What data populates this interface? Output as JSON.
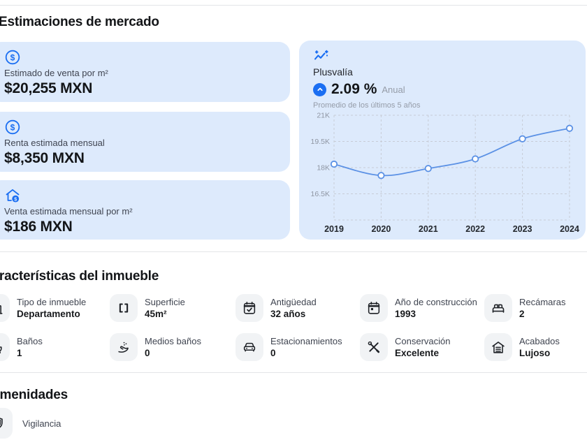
{
  "colors": {
    "accent_blue": "#1a6ef2",
    "card_background": "#ddeafc",
    "chart_line": "#5b91e5",
    "chart_grid": "#c7ccd6",
    "icon_tile_background": "#f1f3f5"
  },
  "market_section": {
    "title": "Estimaciones de mercado",
    "cards": [
      {
        "icon": "dollar-circle-icon",
        "label": "Estimado de venta por m²",
        "value": "$20,255 MXN"
      },
      {
        "icon": "dollar-circle-icon",
        "label": "Renta estimada mensual",
        "value": "$8,350 MXN"
      },
      {
        "icon": "house-dollar-icon",
        "label": "Venta estimada mensual por m²",
        "value": "$186 MXN"
      }
    ],
    "plusvalia": {
      "icon": "trend-sparkle-icon",
      "title": "Plusvalía",
      "badge_icon": "arrow-up-icon",
      "rate": "2.09 %",
      "rate_suffix": "Anual",
      "subtitle": "Promedio de los últimos 5 años"
    }
  },
  "chart_data": {
    "type": "line",
    "title": "Plusvalía (precio por m², MXN)",
    "x_labels": [
      "2019",
      "2020",
      "2021",
      "2022",
      "2023",
      "2024"
    ],
    "values": [
      18200,
      17550,
      17950,
      18500,
      19650,
      20250
    ],
    "y_ticks": [
      {
        "value": 16500,
        "label": "16.5K"
      },
      {
        "value": 18000,
        "label": "18K"
      },
      {
        "value": 19500,
        "label": "19.5K"
      },
      {
        "value": 21000,
        "label": "21K"
      }
    ],
    "ylim": [
      15000,
      21000
    ],
    "grid": true,
    "legend": "none",
    "line_color": "#5b91e5"
  },
  "features_section": {
    "title": "Características del inmueble",
    "items": [
      {
        "icon": "building-icon",
        "label": "Tipo de inmueble",
        "value": "Departamento"
      },
      {
        "icon": "brackets-icon",
        "label": "Superficie",
        "value": "45m²"
      },
      {
        "icon": "calendar-check-icon",
        "label": "Antigüedad",
        "value": "32 años"
      },
      {
        "icon": "calendar-date-icon",
        "label": "Año de construcción",
        "value": "1993"
      },
      {
        "icon": "bed-icon",
        "label": "Recámaras",
        "value": "2"
      },
      {
        "icon": "bathtub-icon",
        "label": "Baños",
        "value": "1"
      },
      {
        "icon": "hand-wash-icon",
        "label": "Medios baños",
        "value": "0"
      },
      {
        "icon": "car-icon",
        "label": "Estacionamientos",
        "value": "0"
      },
      {
        "icon": "tools-icon",
        "label": "Conservación",
        "value": "Excelente"
      },
      {
        "icon": "house-finishes-icon",
        "label": "Acabados",
        "value": "Lujoso"
      }
    ]
  },
  "amenities_section": {
    "title": "Amenidades",
    "items": [
      {
        "icon": "shield-icon",
        "label": "Vigilancia"
      }
    ]
  }
}
